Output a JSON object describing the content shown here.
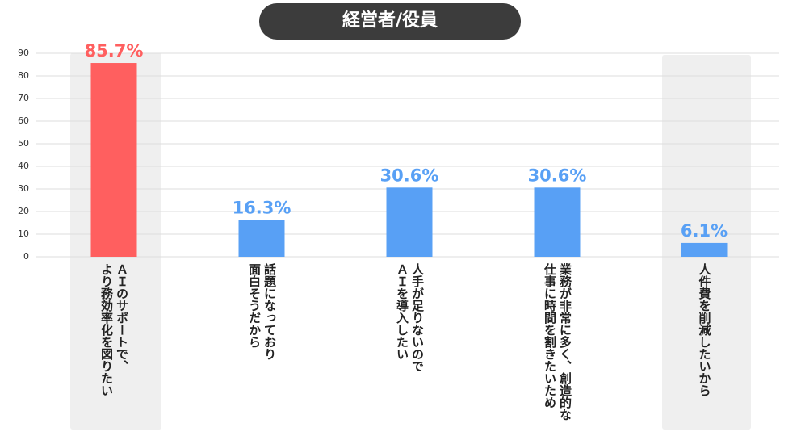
{
  "chart_data": {
    "type": "bar",
    "title": "経営者/役員",
    "categories": [
      "ＡＩのサポートで、\nより務効率化を図りたい",
      "話題になっており\n面白そうだから",
      "人手が足りないので\nＡＩを導入したい",
      "業務が非常に多く、創造的な\n仕事に時間を割きたいため",
      "人件費を削減したいから"
    ],
    "values": [
      85.7,
      16.3,
      30.6,
      30.6,
      6.1
    ],
    "value_labels": [
      "85.7%",
      "16.3%",
      "30.6%",
      "30.6%",
      "6.1%"
    ],
    "colors": [
      "#ff5f5f",
      "#58a0f5",
      "#58a0f5",
      "#58a0f5",
      "#58a0f5"
    ],
    "ylim": [
      0,
      90
    ],
    "yticks": [
      0,
      10,
      20,
      30,
      40,
      50,
      60,
      70,
      80,
      90
    ],
    "grid": true
  }
}
